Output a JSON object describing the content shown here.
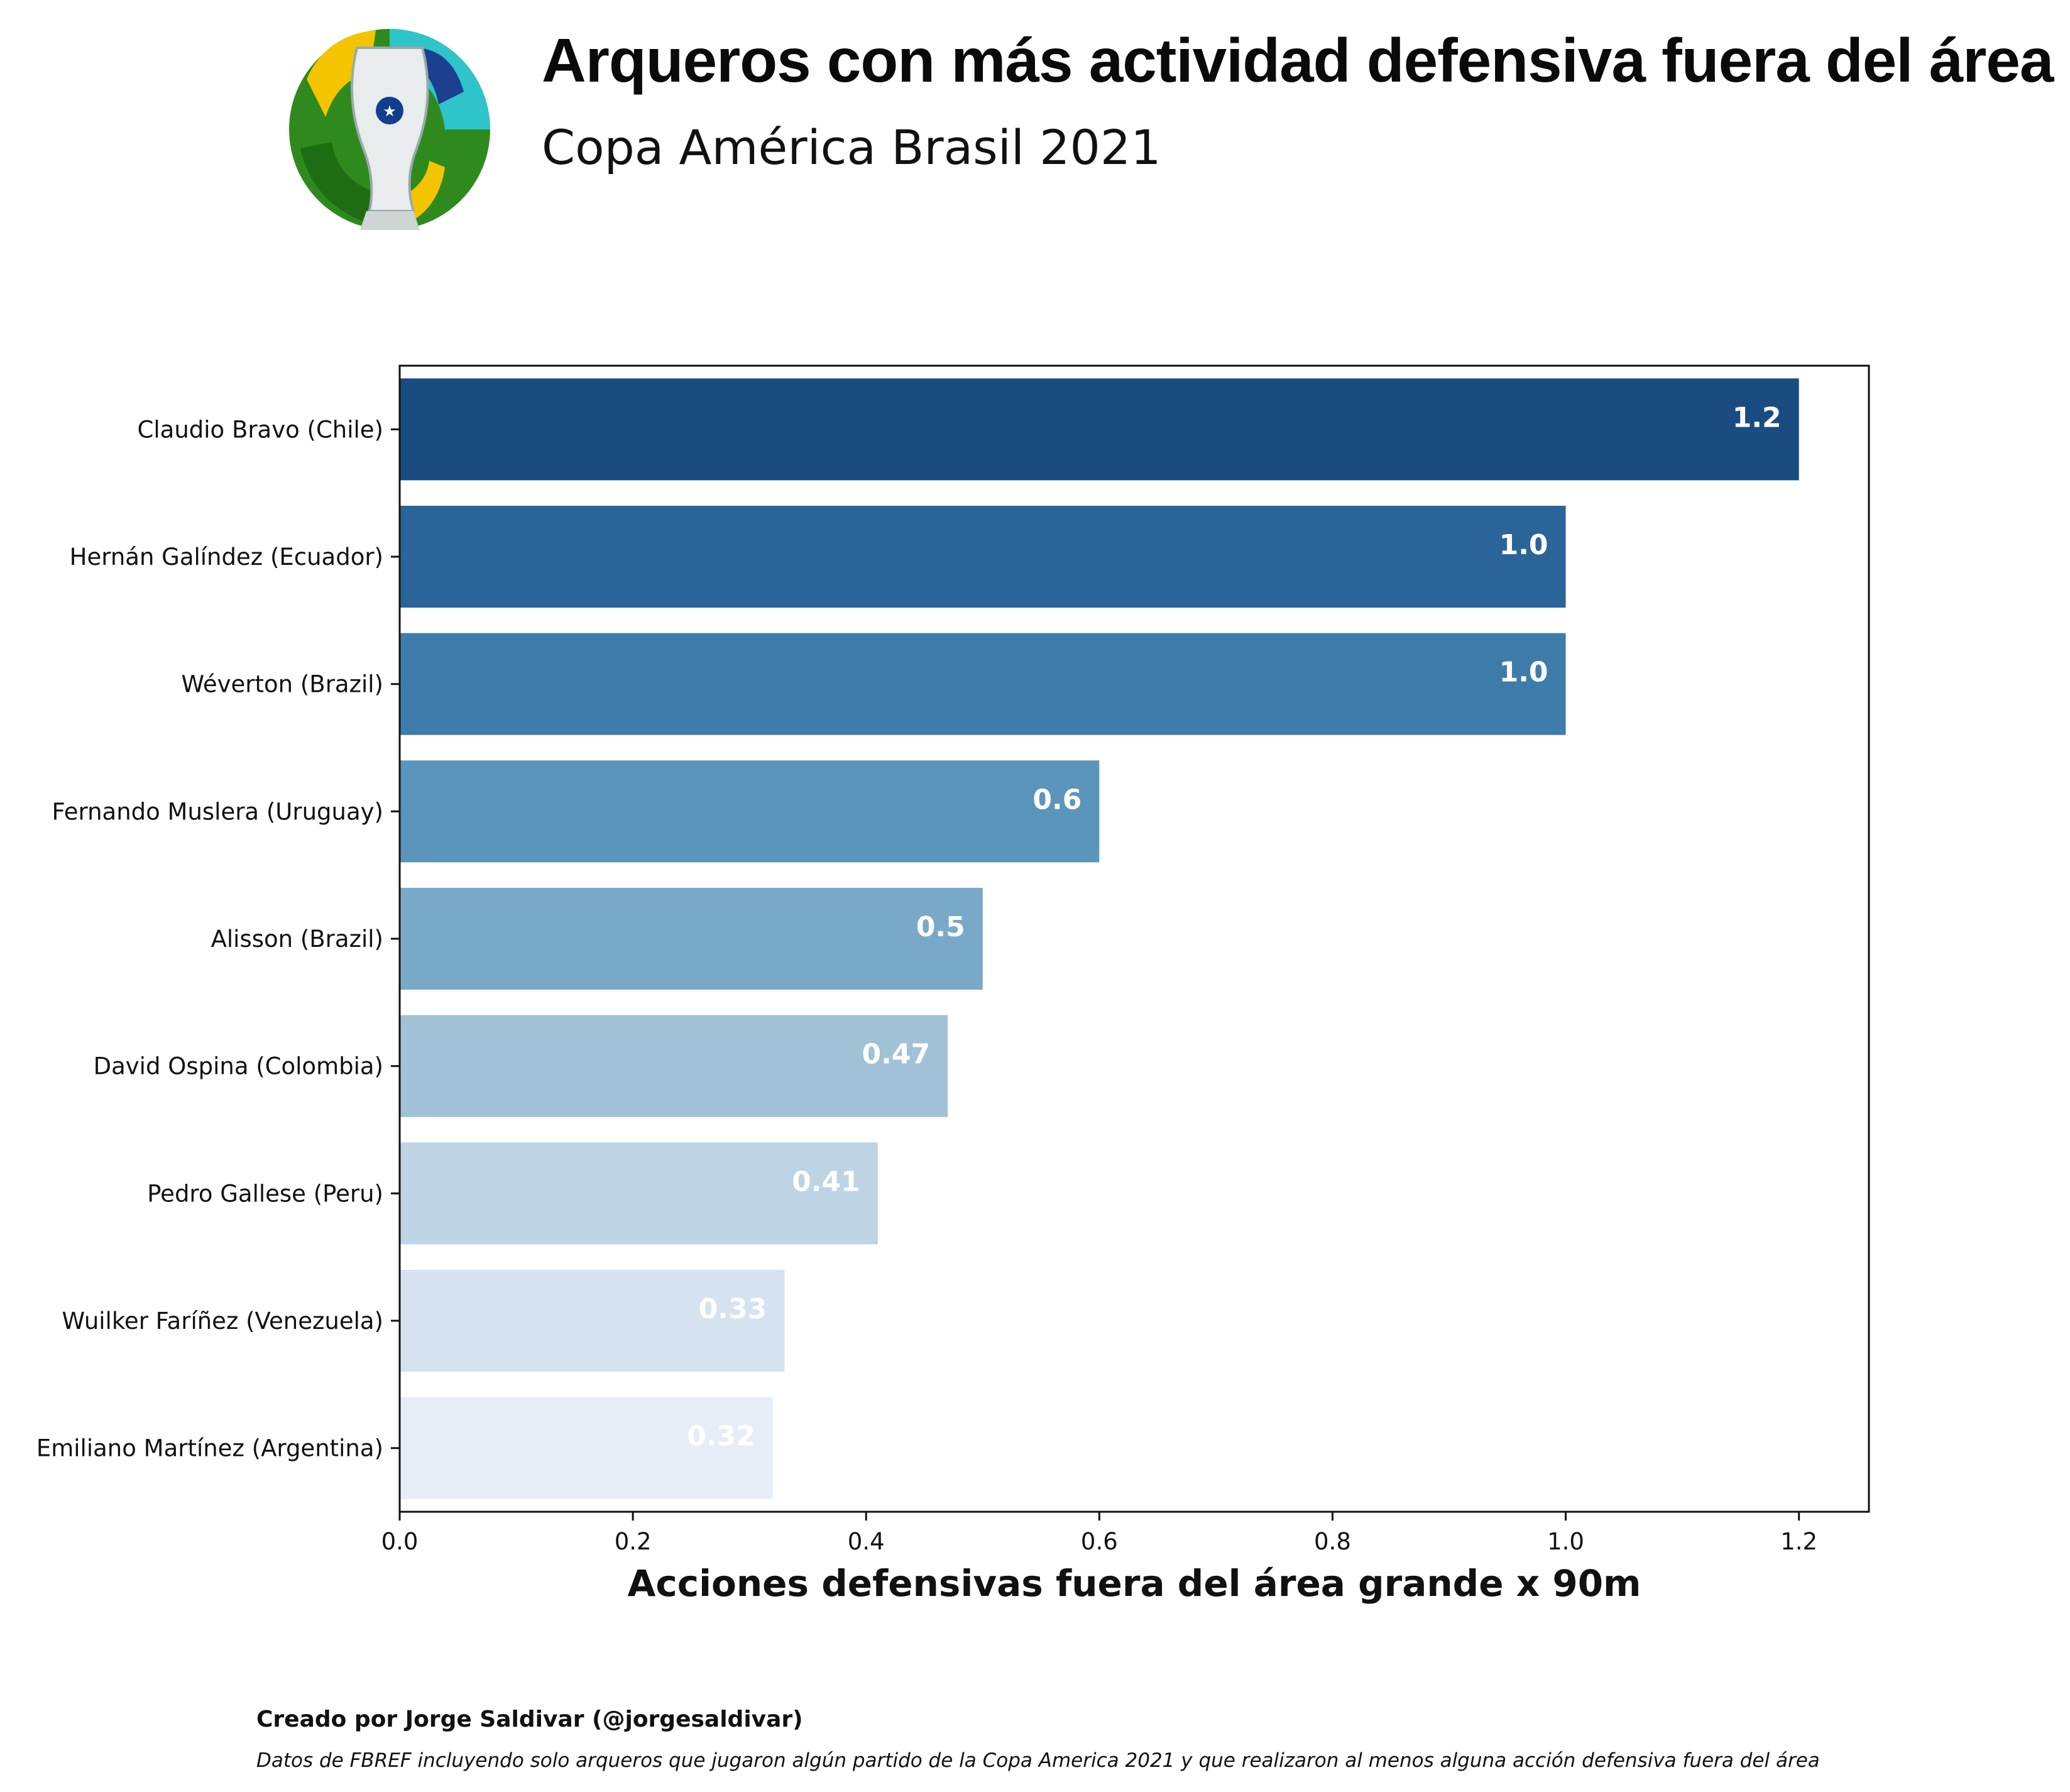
{
  "header": {
    "title": "Arqueros con más actividad defensiva fuera del área",
    "subtitle": "Copa América Brasil 2021",
    "logo_icon": "copa-america-trophy-logo"
  },
  "chart_data": {
    "type": "bar",
    "orientation": "horizontal",
    "categories": [
      "Claudio Bravo (Chile)",
      "Hernán Galíndez (Ecuador)",
      "Wéverton (Brazil)",
      "Fernando Muslera (Uruguay)",
      "Alisson (Brazil)",
      "David Ospina (Colombia)",
      "Pedro Gallese (Peru)",
      "Wuilker Faríñez (Venezuela)",
      "Emiliano Martínez (Argentina)"
    ],
    "values": [
      1.2,
      1.0,
      1.0,
      0.6,
      0.5,
      0.47,
      0.41,
      0.33,
      0.32
    ],
    "value_labels": [
      "1.2",
      "1.0",
      "1.0",
      "0.6",
      "0.5",
      "0.47",
      "0.41",
      "0.33",
      "0.32"
    ],
    "colors": [
      "#1b4c81",
      "#2b6499",
      "#3e7cab",
      "#5c95bc",
      "#79a9c9",
      "#a0c1d6",
      "#bed3e4",
      "#d5e2ef",
      "#e6edf6"
    ],
    "xlabel": "Acciones defensivas fuera del área grande x 90m",
    "xlim": [
      0.0,
      1.26
    ],
    "xticks": [
      "0.0",
      "0.2",
      "0.4",
      "0.6",
      "0.8",
      "1.0",
      "1.2"
    ],
    "grid": false
  },
  "footer": {
    "credit": "Creado por Jorge Saldivar (@jorgesaldivar)",
    "source": "Datos de FBREF incluyendo solo arqueros que jugaron algún partido de la Copa America 2021 y que realizaron al menos alguna acción defensiva fuera del área"
  }
}
